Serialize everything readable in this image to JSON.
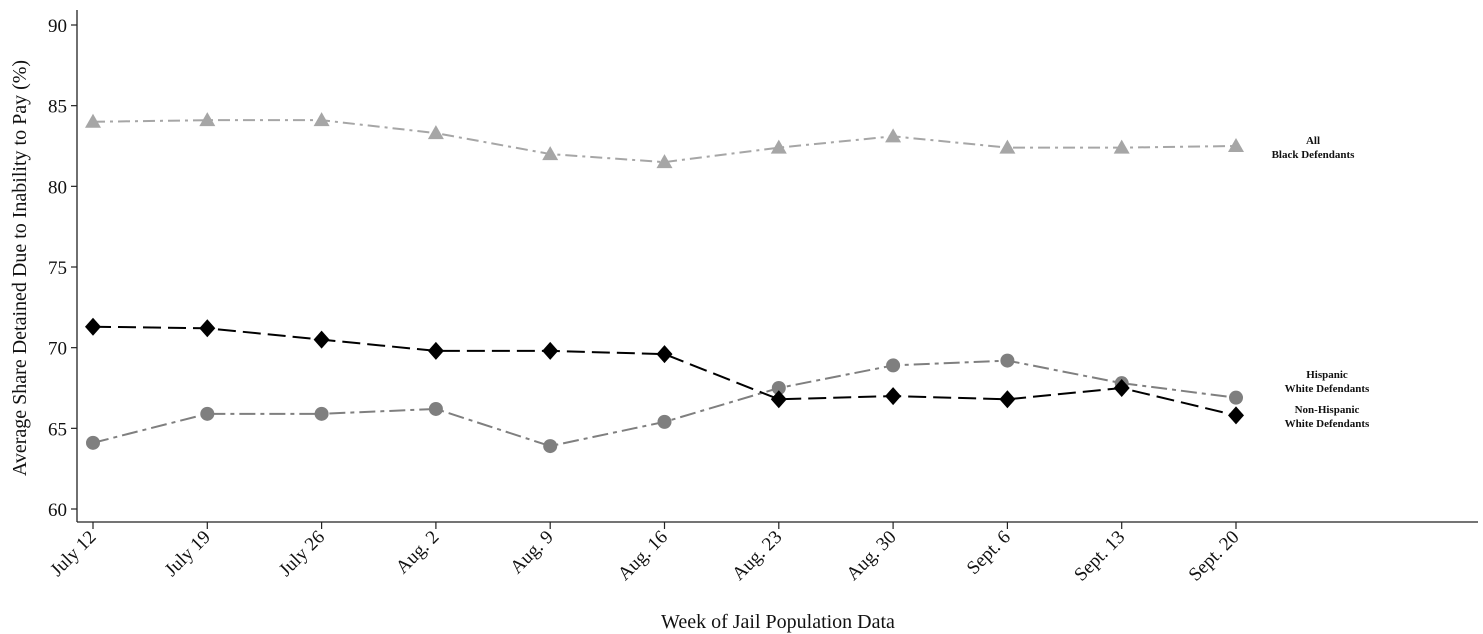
{
  "chart_data": {
    "type": "line",
    "xlabel": "Week of Jail Population Data",
    "ylabel": "Average Share Detained Due to Inability to Pay (%)",
    "ylim": [
      60,
      90
    ],
    "yticks": [
      60,
      65,
      70,
      75,
      80,
      85,
      90
    ],
    "categories": [
      "July 12",
      "July 19",
      "July 26",
      "Aug. 2",
      "Aug. 9",
      "Aug. 16",
      "Aug. 23",
      "Aug. 30",
      "Sept. 6",
      "Sept. 13",
      "Sept. 20"
    ],
    "grid": false,
    "legend": "none; series labeled at right end",
    "series": [
      {
        "label_lines": [
          "All",
          "Black Defendants"
        ],
        "values": [
          84.0,
          84.1,
          84.1,
          83.3,
          82.0,
          81.5,
          82.4,
          83.1,
          82.4,
          82.4,
          82.5
        ],
        "marker": "triangle",
        "color": "#a6a6a6",
        "dash": "dash-dot"
      },
      {
        "label_lines": [
          "Hispanic",
          "White Defendants"
        ],
        "values": [
          64.1,
          65.9,
          65.9,
          66.2,
          63.9,
          65.4,
          67.5,
          68.9,
          69.2,
          67.8,
          66.9
        ],
        "marker": "circle",
        "color": "#7f7f7f",
        "dash": "long-dash-dot"
      },
      {
        "label_lines": [
          "Non-Hispanic",
          "White Defendants"
        ],
        "values": [
          71.3,
          71.2,
          70.5,
          69.8,
          69.8,
          69.6,
          66.8,
          67.0,
          66.8,
          67.5,
          65.8
        ],
        "marker": "diamond",
        "color": "#000000",
        "dash": "long-dash"
      }
    ]
  }
}
